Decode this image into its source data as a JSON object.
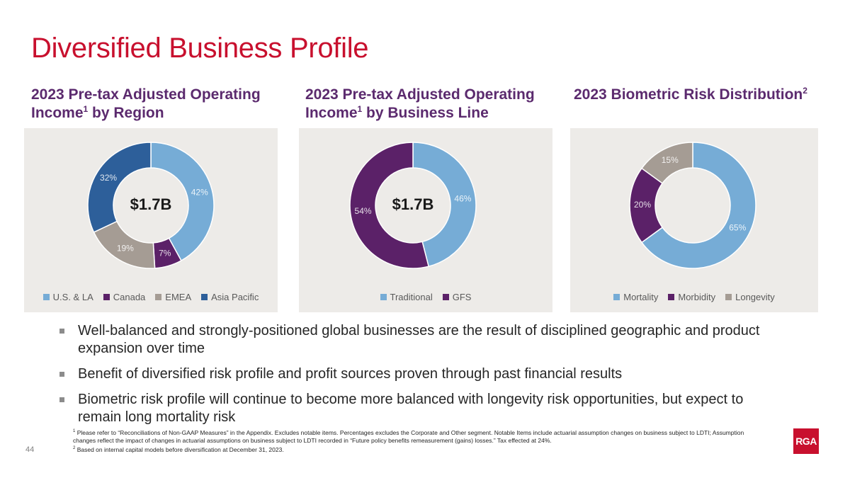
{
  "page": {
    "title": "Diversified Business Profile",
    "page_number": "44",
    "logo_text": "RGA"
  },
  "colors": {
    "title": "#c8102e",
    "subtitle": "#5b2a6e",
    "light_blue": "#76acd6",
    "purple": "#5b2168",
    "taupe": "#a59c94",
    "dark_blue": "#2d5f9a"
  },
  "charts": [
    {
      "title_main": "2023 Pre-tax Adjusted Operating Income",
      "title_sup": "1",
      "title_rest": " by Region",
      "center_label": "$1.7B"
    },
    {
      "title_main": "2023 Pre-tax Adjusted Operating Income",
      "title_sup": "1",
      "title_rest": " by Business Line",
      "center_label": "$1.7B"
    },
    {
      "title_main": "2023 Biometric Risk Distribution",
      "title_sup": "2",
      "title_rest": "",
      "center_label": ""
    }
  ],
  "chart_data": [
    {
      "type": "pie",
      "title": "2023 Pre-tax Adjusted Operating Income by Region",
      "categories": [
        "U.S. & LA",
        "Canada",
        "EMEA",
        "Asia Pacific"
      ],
      "values": [
        42,
        7,
        19,
        32
      ],
      "labels": [
        "42%",
        "7%",
        "19%",
        "32%"
      ],
      "colors": [
        "#76acd6",
        "#5b2168",
        "#a59c94",
        "#2d5f9a"
      ],
      "legend": "bottom"
    },
    {
      "type": "pie",
      "title": "2023 Pre-tax Adjusted Operating Income by Business Line",
      "categories": [
        "Traditional",
        "GFS"
      ],
      "values": [
        46,
        54
      ],
      "labels": [
        "46%",
        "54%"
      ],
      "colors": [
        "#76acd6",
        "#5b2168"
      ],
      "legend": "bottom"
    },
    {
      "type": "pie",
      "title": "2023 Biometric Risk Distribution",
      "categories": [
        "Mortality",
        "Morbidity",
        "Longevity"
      ],
      "values": [
        65,
        20,
        15
      ],
      "labels": [
        "65%",
        "20%",
        "15%"
      ],
      "colors": [
        "#76acd6",
        "#5b2168",
        "#a59c94"
      ],
      "legend": "bottom"
    }
  ],
  "bullets": [
    "Well-balanced and strongly-positioned global businesses are the result of disciplined geographic and product expansion over time",
    "Benefit of diversified risk profile and profit sources proven through past financial results",
    "Biometric risk profile will continue to become more balanced with longevity risk opportunities, but expect to remain long mortality risk"
  ],
  "footnotes": [
    {
      "sup": "1",
      "text": " Please refer to “Reconciliations of Non-GAAP Measures” in the Appendix. Excludes notable items. Percentages excludes the Corporate and Other segment. Notable Items include actuarial assumption changes on business subject to LDTI; Assumption changes reflect the impact of changes in actuarial assumptions on business subject to LDTI recorded in “Future policy benefits remeasurement (gains) losses.” Tax effected at 24%."
    },
    {
      "sup": "2",
      "text": " Based on internal capital models before diversification at December 31, 2023."
    }
  ]
}
